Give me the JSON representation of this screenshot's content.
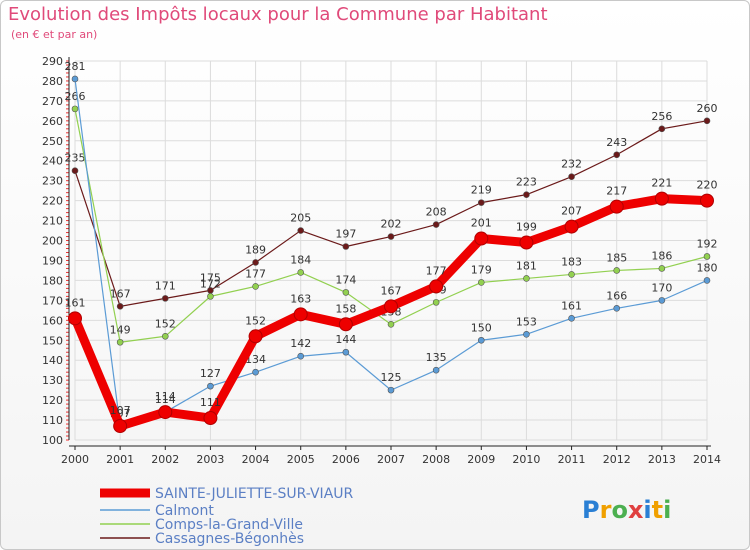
{
  "chart_data": {
    "type": "line",
    "title": "Evolution des Impôts locaux pour la Commune par Habitant",
    "subtitle": "(en € et par an)",
    "categories": [
      "2000",
      "2001",
      "2002",
      "2003",
      "2004",
      "2005",
      "2006",
      "2007",
      "2008",
      "2009",
      "2010",
      "2011",
      "2012",
      "2013",
      "2014"
    ],
    "ylim": [
      100,
      290
    ],
    "yticks": [
      100,
      110,
      120,
      130,
      140,
      150,
      160,
      170,
      180,
      190,
      200,
      210,
      220,
      230,
      240,
      250,
      260,
      270,
      280,
      290
    ],
    "grid": true,
    "legend_position": "bottom-left",
    "series": [
      {
        "name": "SAINTE-JULIETTE-SUR-VIAUR",
        "color": "#ee0000",
        "values": [
          161,
          107,
          114,
          111,
          152,
          163,
          158,
          167,
          177,
          201,
          199,
          207,
          217,
          221,
          220
        ]
      },
      {
        "name": "Calmont",
        "color": "#5b9bd5",
        "values": [
          281,
          107,
          114,
          127,
          134,
          142,
          144,
          125,
          135,
          150,
          153,
          161,
          166,
          170,
          180
        ]
      },
      {
        "name": "Comps-la-Grand-Ville",
        "color": "#92d050",
        "values": [
          266,
          149,
          152,
          172,
          177,
          184,
          174,
          158,
          169,
          179,
          181,
          183,
          185,
          186,
          192
        ]
      },
      {
        "name": "Cassagnes-Bégonhès",
        "color": "#6b1a1a",
        "values": [
          235,
          167,
          171,
          175,
          189,
          205,
          197,
          202,
          208,
          219,
          223,
          232,
          243,
          256,
          260
        ]
      }
    ]
  },
  "logo": {
    "text": "Proxiti"
  }
}
